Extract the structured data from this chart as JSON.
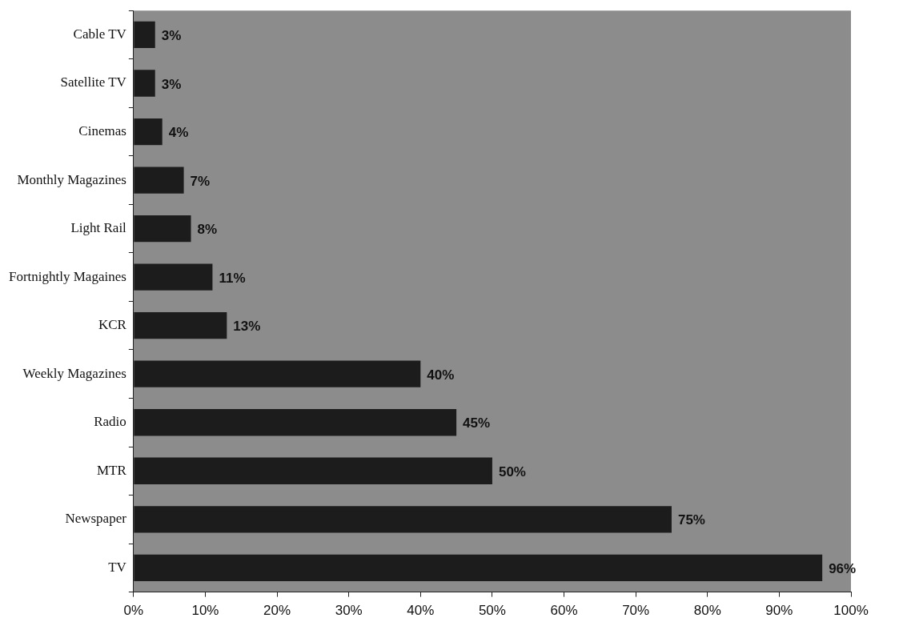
{
  "chart_data": {
    "type": "bar",
    "orientation": "horizontal",
    "categories": [
      "Cable TV",
      "Satellite TV",
      "Cinemas",
      "Monthly Magazines",
      "Light Rail",
      "Fortnightly Magaines",
      "KCR",
      "Weekly Magazines",
      "Radio",
      "MTR",
      "Newspaper",
      "TV"
    ],
    "values": [
      3,
      3,
      4,
      7,
      8,
      11,
      13,
      40,
      45,
      50,
      75,
      96
    ],
    "color": "#1c1c1c",
    "xlim": [
      0,
      100
    ],
    "xticks": [
      {
        "value": 0,
        "label": "0%"
      },
      {
        "value": 10,
        "label": "10%"
      },
      {
        "value": 20,
        "label": "20%"
      },
      {
        "value": 30,
        "label": "30%"
      },
      {
        "value": 40,
        "label": "40%"
      },
      {
        "value": 50,
        "label": "50%"
      },
      {
        "value": 60,
        "label": "60%"
      },
      {
        "value": 70,
        "label": "70%"
      },
      {
        "value": 80,
        "label": "80%"
      },
      {
        "value": 90,
        "label": "90%"
      },
      {
        "value": 100,
        "label": "100%"
      }
    ],
    "value_labels": [
      "3%",
      "3%",
      "4%",
      "7%",
      "8%",
      "11%",
      "13%",
      "40%",
      "45%",
      "50%",
      "75%",
      "96%"
    ],
    "grid": false,
    "legend": false
  }
}
